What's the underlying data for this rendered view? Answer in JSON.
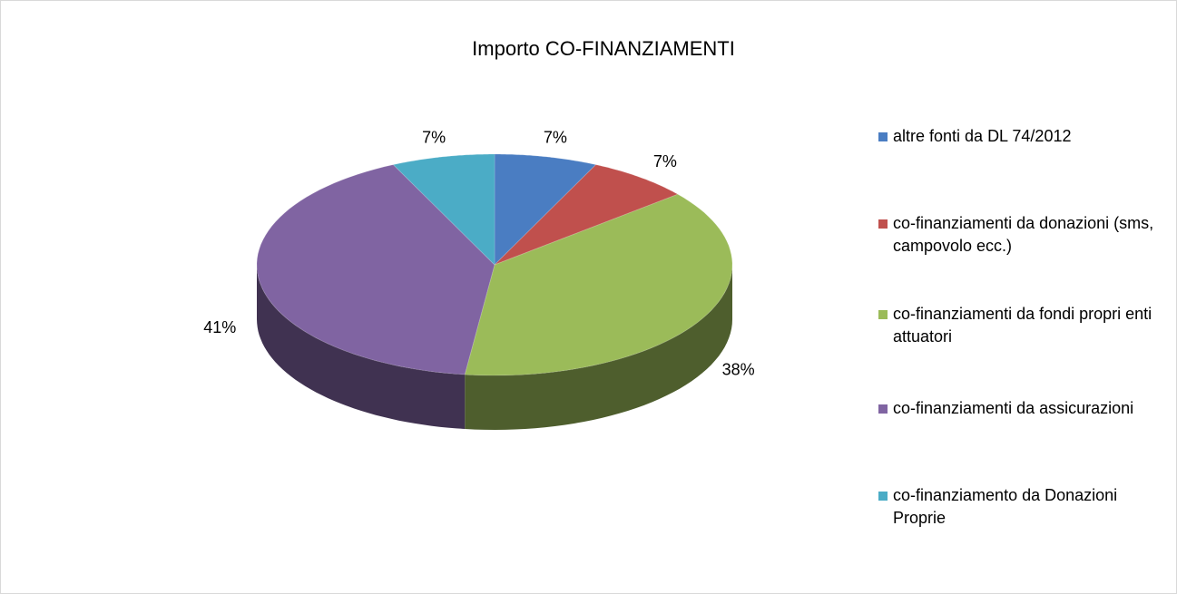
{
  "chart_data": {
    "type": "pie",
    "title": "Importo CO-FINANZIAMENTI",
    "categories": [
      "altre fonti da DL 74/2012",
      "co-finanziamenti da donazioni (sms, campovolo ecc.)",
      "co-finanziamenti da fondi propri enti attuatori",
      "co-finanziamenti da assicurazioni",
      "co-finanziamento da Donazioni Proprie"
    ],
    "values": [
      7,
      7,
      38,
      41,
      7
    ],
    "value_labels": [
      "7%",
      "7%",
      "38%",
      "41%",
      "7%"
    ],
    "colors": [
      "#4a7dc2",
      "#c0504d",
      "#9bbb59",
      "#8064a2",
      "#4bacc6"
    ],
    "legend": "right"
  }
}
